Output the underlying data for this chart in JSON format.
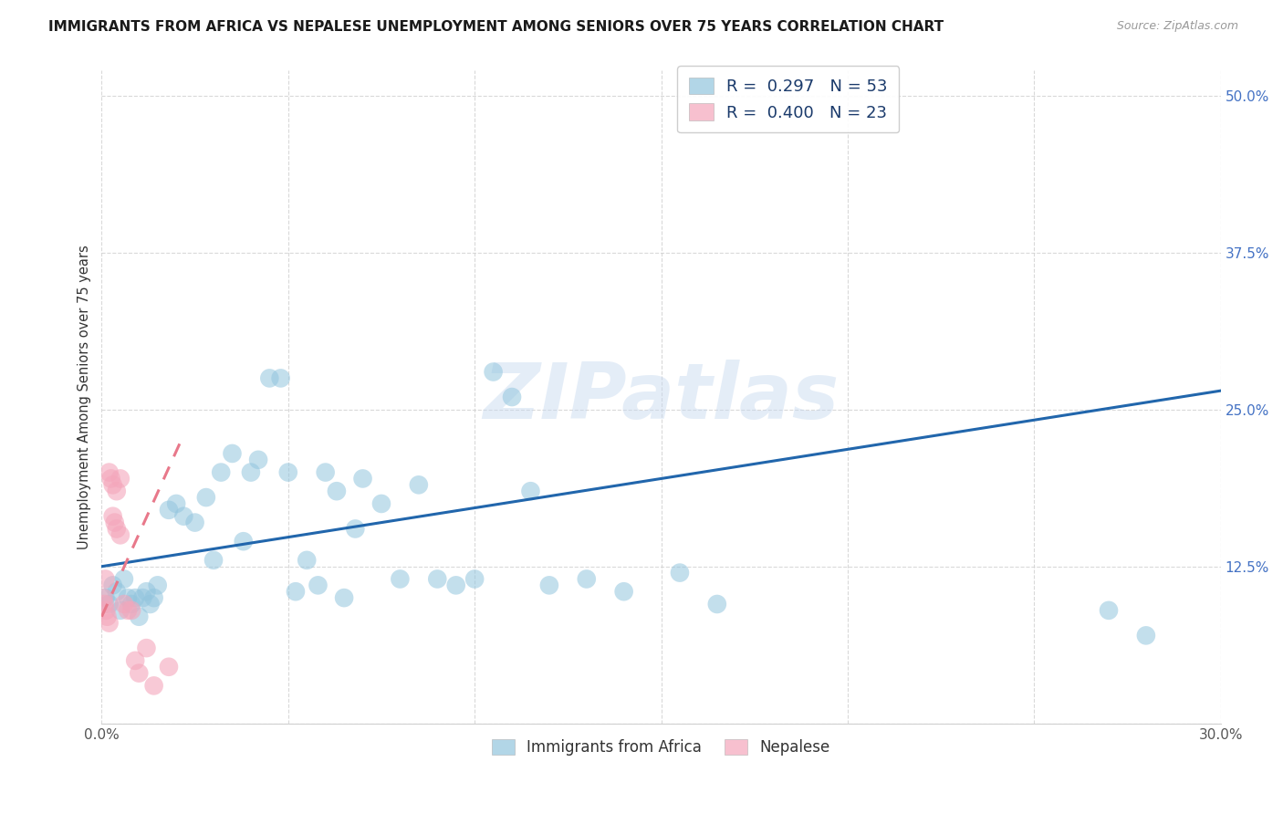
{
  "title": "IMMIGRANTS FROM AFRICA VS NEPALESE UNEMPLOYMENT AMONG SENIORS OVER 75 YEARS CORRELATION CHART",
  "source": "Source: ZipAtlas.com",
  "ylabel": "Unemployment Among Seniors over 75 years",
  "xlim": [
    0.0,
    0.3
  ],
  "ylim": [
    0.0,
    0.52
  ],
  "xtick_vals": [
    0.0,
    0.05,
    0.1,
    0.15,
    0.2,
    0.25,
    0.3
  ],
  "xtick_labels": [
    "0.0%",
    "",
    "",
    "",
    "",
    "",
    "30.0%"
  ],
  "ytick_vals": [
    0.0,
    0.125,
    0.25,
    0.375,
    0.5
  ],
  "ytick_labels": [
    "",
    "12.5%",
    "25.0%",
    "37.5%",
    "50.0%"
  ],
  "r_africa": 0.297,
  "n_africa": 53,
  "r_nepalese": 0.4,
  "n_nepalese": 23,
  "color_africa": "#92c5de",
  "color_nepalese": "#f4a6bb",
  "line_color_africa": "#2166ac",
  "line_color_nepalese": "#e8788a",
  "africa_x": [
    0.001,
    0.002,
    0.003,
    0.004,
    0.005,
    0.006,
    0.007,
    0.008,
    0.009,
    0.01,
    0.011,
    0.012,
    0.013,
    0.014,
    0.015,
    0.018,
    0.02,
    0.022,
    0.025,
    0.028,
    0.03,
    0.032,
    0.035,
    0.038,
    0.04,
    0.042,
    0.045,
    0.048,
    0.05,
    0.052,
    0.055,
    0.058,
    0.06,
    0.063,
    0.065,
    0.068,
    0.07,
    0.075,
    0.08,
    0.085,
    0.09,
    0.095,
    0.1,
    0.105,
    0.11,
    0.115,
    0.12,
    0.13,
    0.14,
    0.155,
    0.165,
    0.27,
    0.28
  ],
  "africa_y": [
    0.1,
    0.095,
    0.11,
    0.105,
    0.09,
    0.115,
    0.1,
    0.095,
    0.1,
    0.085,
    0.1,
    0.105,
    0.095,
    0.1,
    0.11,
    0.17,
    0.175,
    0.165,
    0.16,
    0.18,
    0.13,
    0.2,
    0.215,
    0.145,
    0.2,
    0.21,
    0.275,
    0.275,
    0.2,
    0.105,
    0.13,
    0.11,
    0.2,
    0.185,
    0.1,
    0.155,
    0.195,
    0.175,
    0.115,
    0.19,
    0.115,
    0.11,
    0.115,
    0.28,
    0.26,
    0.185,
    0.11,
    0.115,
    0.105,
    0.12,
    0.095,
    0.09,
    0.07
  ],
  "nep_x": [
    0.0005,
    0.0008,
    0.001,
    0.0012,
    0.0015,
    0.002,
    0.002,
    0.0025,
    0.003,
    0.003,
    0.0035,
    0.004,
    0.004,
    0.005,
    0.005,
    0.006,
    0.007,
    0.008,
    0.009,
    0.01,
    0.012,
    0.014,
    0.018
  ],
  "nep_y": [
    0.1,
    0.095,
    0.115,
    0.09,
    0.085,
    0.08,
    0.2,
    0.195,
    0.19,
    0.165,
    0.16,
    0.185,
    0.155,
    0.195,
    0.15,
    0.095,
    0.09,
    0.09,
    0.05,
    0.04,
    0.06,
    0.03,
    0.045
  ],
  "africa_line_x": [
    0.0,
    0.3
  ],
  "africa_line_y": [
    0.125,
    0.265
  ],
  "nep_line_x": [
    0.0,
    0.022
  ],
  "nep_line_y": [
    0.085,
    0.23
  ],
  "watermark_text": "ZIPatlas",
  "watermark_color": "#c5d8ef",
  "bg_color": "#ffffff",
  "grid_color": "#d0d0d0",
  "tick_color_y": "#4472c4",
  "tick_color_x": "#555555"
}
